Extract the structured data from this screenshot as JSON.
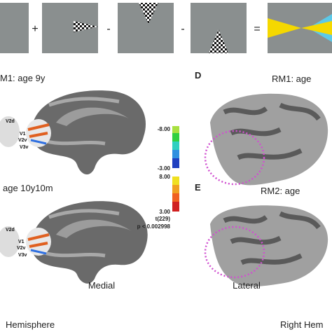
{
  "stimuli": {
    "operators": [
      "+",
      "-",
      "-",
      "="
    ]
  },
  "panels": {
    "row1_left": "M1: age 9y",
    "row1_letter": "D",
    "row1_right": "RM1: age",
    "row2_left": "age 10y10m",
    "row2_letter": "E",
    "row2_right": "RM2: age"
  },
  "colorbar": {
    "labels": [
      "-8.00",
      "-3.00",
      "8.00",
      "3.00",
      "t(229)",
      "p < 0.002998"
    ]
  },
  "areas": [
    "V2d",
    "V1",
    "V2v",
    "V3v"
  ],
  "views": {
    "medial": "Medial",
    "lateral": "Lateral"
  },
  "footer": {
    "left": "Hemisphere",
    "right": "Right Hem"
  }
}
